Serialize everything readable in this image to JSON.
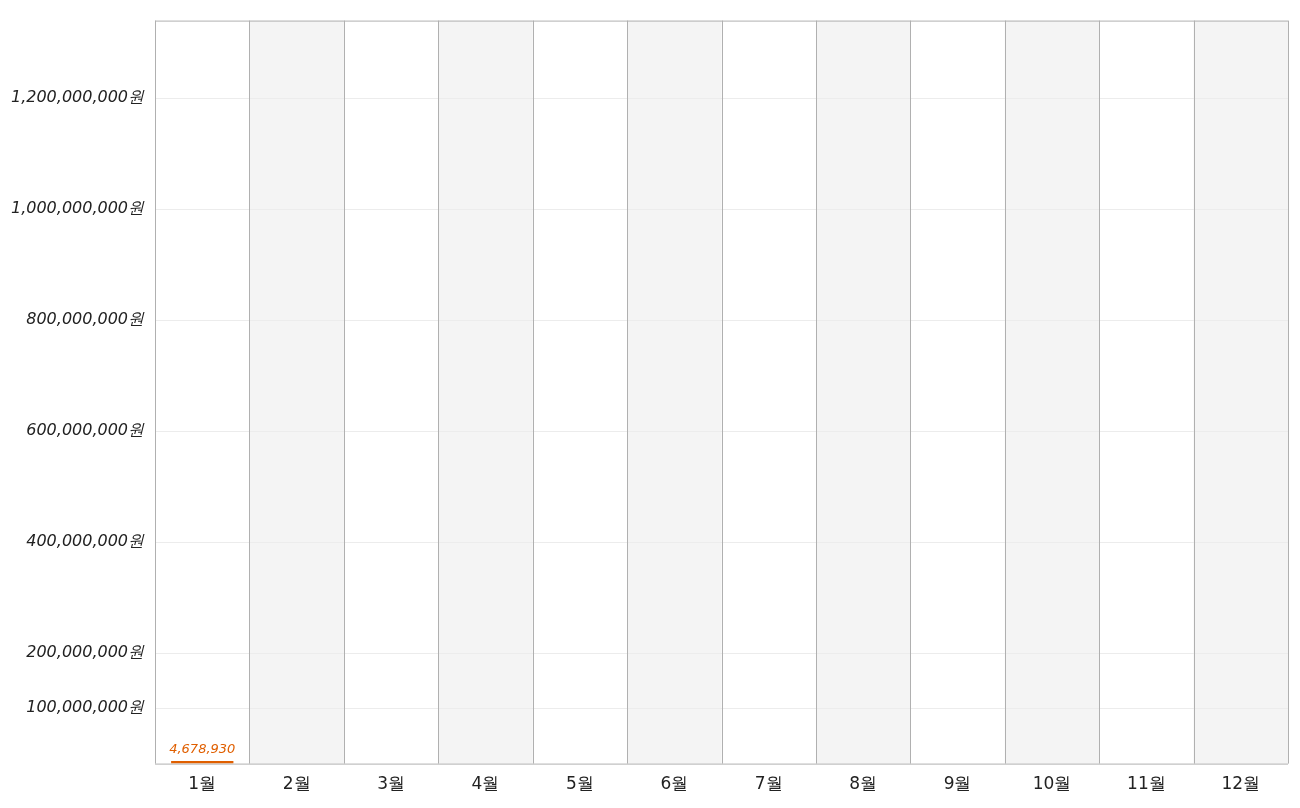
{
  "chart_data": {
    "type": "bar",
    "categories": [
      "1월",
      "2월",
      "3월",
      "4월",
      "5월",
      "6월",
      "7월",
      "8월",
      "9월",
      "10월",
      "11월",
      "12월"
    ],
    "values": [
      4678930,
      null,
      null,
      null,
      null,
      null,
      null,
      null,
      null,
      null,
      null,
      null
    ],
    "color": "#e05f00",
    "ylim": [
      0,
      1340000000
    ],
    "yticks": [
      {
        "value": 100000000,
        "label": "100,000,000원"
      },
      {
        "value": 200000000,
        "label": "200,000,000원"
      },
      {
        "value": 400000000,
        "label": "400,000,000원"
      },
      {
        "value": 600000000,
        "label": "600,000,000원"
      },
      {
        "value": 800000000,
        "label": "800,000,000원"
      },
      {
        "value": 1000000000,
        "label": "1,000,000,000원"
      },
      {
        "value": 1200000000,
        "label": "1,200,000,000원"
      }
    ],
    "value_labels": [
      "4,678,930",
      null,
      null,
      null,
      null,
      null,
      null,
      null,
      null,
      null,
      null,
      null
    ],
    "grid": true,
    "legend": false
  }
}
